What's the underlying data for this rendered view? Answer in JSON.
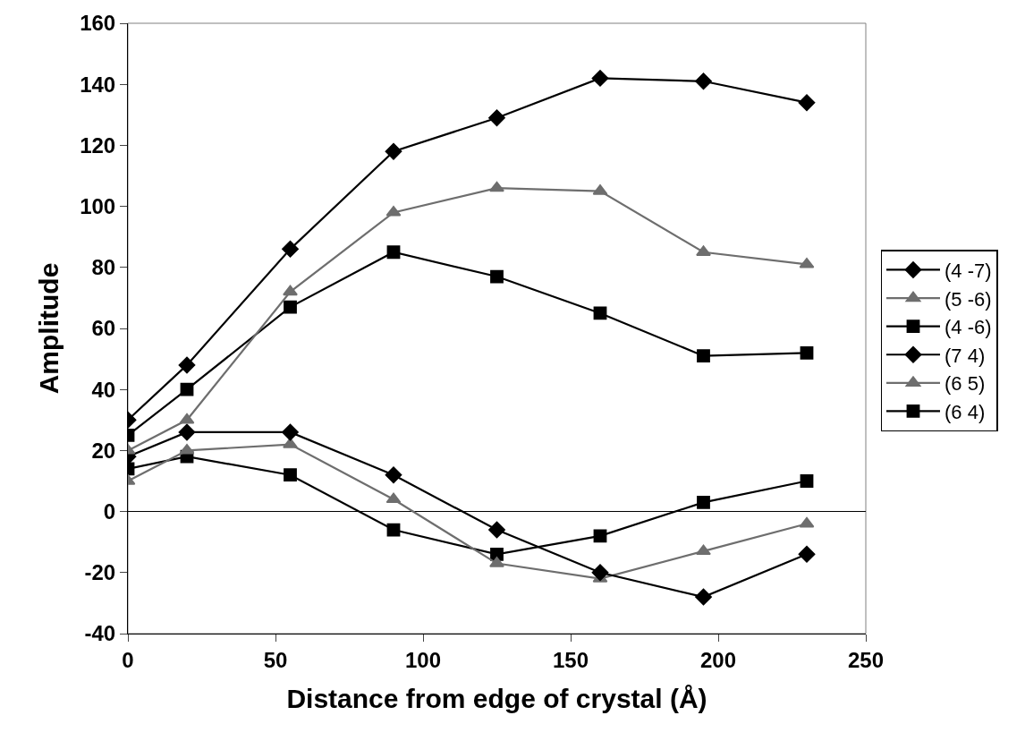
{
  "chart_data": {
    "type": "line",
    "xlabel": "Distance from edge of crystal (Å)",
    "ylabel": "Amplitude",
    "x": [
      0,
      20,
      55,
      90,
      125,
      160,
      195,
      230
    ],
    "series": [
      {
        "name": "(4 -7)",
        "color": "#000000",
        "marker": "diamond",
        "values": [
          30,
          48,
          86,
          118,
          129,
          142,
          141,
          134
        ]
      },
      {
        "name": "(5 -6)",
        "color": "#6e6e6e",
        "marker": "triangle",
        "values": [
          20,
          30,
          72,
          98,
          106,
          105,
          85,
          81
        ]
      },
      {
        "name": "(4 -6)",
        "color": "#000000",
        "marker": "square",
        "values": [
          25,
          40,
          67,
          85,
          77,
          65,
          51,
          52
        ]
      },
      {
        "name": "(7 4)",
        "color": "#000000",
        "marker": "diamond",
        "values": [
          18,
          26,
          26,
          12,
          -6,
          -20,
          -28,
          -14
        ]
      },
      {
        "name": "(6 5)",
        "color": "#6e6e6e",
        "marker": "triangle",
        "values": [
          10,
          20,
          22,
          4,
          -17,
          -22,
          -13,
          -4
        ]
      },
      {
        "name": "(6 4)",
        "color": "#000000",
        "marker": "square",
        "values": [
          14,
          18,
          12,
          -6,
          -14,
          -8,
          3,
          10
        ]
      }
    ],
    "xlim": [
      0,
      250
    ],
    "xticks": [
      0,
      50,
      100,
      150,
      200,
      250
    ],
    "ylim": [
      -40,
      160
    ],
    "yticks": [
      -40,
      -20,
      0,
      20,
      40,
      60,
      80,
      100,
      120,
      140,
      160
    ],
    "legend": "right",
    "line_style": "solid"
  }
}
